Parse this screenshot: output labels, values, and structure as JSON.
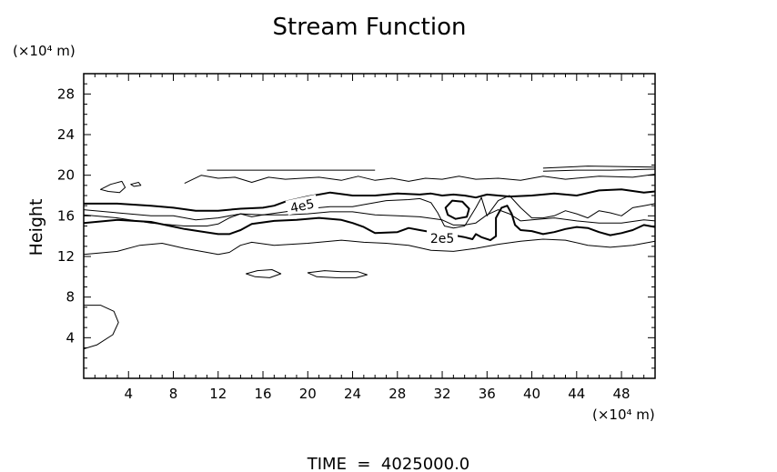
{
  "chart_data": {
    "type": "contour",
    "title": "Stream Function",
    "xlabel": "",
    "ylabel": "Height",
    "x_unit_label": "(×10⁴ m)",
    "y_unit_label": "(×10⁴ m)",
    "xlim": [
      0,
      51
    ],
    "ylim": [
      0,
      30
    ],
    "x_ticks": [
      4,
      8,
      12,
      16,
      20,
      24,
      28,
      32,
      36,
      40,
      44,
      48
    ],
    "y_ticks": [
      4,
      8,
      12,
      16,
      20,
      24,
      28
    ],
    "grid": false,
    "footer": "TIME  =  4025000.0",
    "contour_labels": [
      {
        "text": "4e5",
        "x": 19.5,
        "y": 17.0,
        "angle": -12
      },
      {
        "text": "2e5",
        "x": 32.0,
        "y": 13.8,
        "angle": 0
      }
    ],
    "contours": [
      {
        "name": "upper-thin-1",
        "weight": "thin",
        "closed": false,
        "points": [
          [
            11,
            20.5
          ],
          [
            16,
            20.5
          ],
          [
            22,
            20.5
          ],
          [
            26,
            20.5
          ]
        ]
      },
      {
        "name": "upper-thin-2",
        "weight": "thin",
        "closed": false,
        "points": [
          [
            41,
            20.4
          ],
          [
            44,
            20.5
          ],
          [
            47,
            20.5
          ],
          [
            51,
            20.6
          ]
        ]
      },
      {
        "name": "upper-thin-3",
        "weight": "thin",
        "closed": false,
        "points": [
          [
            41,
            20.7
          ],
          [
            45,
            20.9
          ],
          [
            51,
            20.8
          ]
        ]
      },
      {
        "name": "contour-6e5",
        "weight": "thin",
        "closed": false,
        "points": [
          [
            9,
            19.2
          ],
          [
            10.5,
            20
          ],
          [
            12,
            19.7
          ],
          [
            13.5,
            19.8
          ],
          [
            15,
            19.3
          ],
          [
            16.5,
            19.8
          ],
          [
            18,
            19.6
          ],
          [
            21,
            19.8
          ],
          [
            23,
            19.5
          ],
          [
            24.5,
            19.9
          ],
          [
            26,
            19.5
          ],
          [
            27.5,
            19.7
          ],
          [
            29,
            19.4
          ],
          [
            30.5,
            19.7
          ],
          [
            32,
            19.6
          ],
          [
            33.5,
            19.9
          ],
          [
            35,
            19.6
          ],
          [
            37,
            19.7
          ],
          [
            39,
            19.5
          ],
          [
            41,
            19.9
          ],
          [
            43,
            19.6
          ],
          [
            46,
            19.9
          ],
          [
            49,
            19.8
          ],
          [
            51,
            20.1
          ]
        ]
      },
      {
        "name": "contour-5e5",
        "weight": "thin",
        "closed": false,
        "points": [
          [
            0,
            16.6
          ],
          [
            3,
            16.3
          ],
          [
            6,
            16.0
          ],
          [
            8,
            16.0
          ],
          [
            10,
            15.6
          ],
          [
            12,
            15.8
          ],
          [
            14,
            16.2
          ],
          [
            16,
            16.1
          ],
          [
            18,
            16.4
          ],
          [
            20,
            16.7
          ],
          [
            22,
            16.9
          ],
          [
            24,
            16.9
          ],
          [
            25,
            17.1
          ],
          [
            27,
            17.5
          ],
          [
            29,
            17.6
          ],
          [
            30,
            17.7
          ],
          [
            31,
            17.3
          ],
          [
            31.6,
            16.3
          ],
          [
            32.2,
            15.0
          ],
          [
            33,
            14.8
          ],
          [
            34,
            15.0
          ],
          [
            35,
            16.8
          ],
          [
            35.5,
            17.8
          ],
          [
            36,
            16.0
          ],
          [
            37,
            17.5
          ],
          [
            38,
            18.0
          ],
          [
            39,
            16.8
          ],
          [
            40,
            15.8
          ],
          [
            41,
            15.8
          ],
          [
            42,
            16.0
          ],
          [
            43,
            16.5
          ],
          [
            44,
            16.2
          ],
          [
            45,
            15.8
          ],
          [
            46,
            16.5
          ],
          [
            47,
            16.3
          ],
          [
            48,
            16.0
          ],
          [
            49,
            16.8
          ],
          [
            50,
            17.0
          ],
          [
            51,
            17.2
          ]
        ]
      },
      {
        "name": "contour-4e5",
        "weight": "thick",
        "closed": false,
        "points": [
          [
            0,
            17.2
          ],
          [
            3,
            17.2
          ],
          [
            6,
            17.0
          ],
          [
            8,
            16.8
          ],
          [
            10,
            16.5
          ],
          [
            12,
            16.5
          ],
          [
            14,
            16.7
          ],
          [
            16,
            16.8
          ],
          [
            17,
            17.0
          ],
          [
            18,
            17.4
          ],
          [
            20,
            17.9
          ],
          [
            22,
            18.3
          ],
          [
            24,
            18.0
          ],
          [
            26,
            18.0
          ],
          [
            28,
            18.2
          ],
          [
            30,
            18.1
          ],
          [
            31,
            18.2
          ],
          [
            32,
            18.0
          ],
          [
            33,
            18.1
          ],
          [
            34,
            18.0
          ],
          [
            35,
            17.8
          ],
          [
            36,
            18.1
          ],
          [
            38,
            17.9
          ],
          [
            40,
            18.0
          ],
          [
            42,
            18.2
          ],
          [
            44,
            18.0
          ],
          [
            46,
            18.5
          ],
          [
            48,
            18.6
          ],
          [
            50,
            18.3
          ],
          [
            51,
            18.4
          ]
        ]
      },
      {
        "name": "contour-3e5",
        "weight": "thin",
        "closed": false,
        "points": [
          [
            0,
            16.1
          ],
          [
            3,
            15.8
          ],
          [
            6,
            15.3
          ],
          [
            9,
            15.0
          ],
          [
            11,
            15.0
          ],
          [
            12,
            15.2
          ],
          [
            13,
            15.8
          ],
          [
            14,
            16.2
          ],
          [
            15,
            15.9
          ],
          [
            16,
            16.1
          ],
          [
            18,
            16.1
          ],
          [
            20,
            16.2
          ],
          [
            22,
            16.4
          ],
          [
            24,
            16.4
          ],
          [
            26,
            16.1
          ],
          [
            28,
            16.0
          ],
          [
            30,
            15.9
          ],
          [
            32,
            15.6
          ],
          [
            33,
            15.1
          ],
          [
            34,
            15.1
          ],
          [
            35,
            15.3
          ],
          [
            36,
            16.1
          ],
          [
            37,
            16.6
          ],
          [
            38,
            16.2
          ],
          [
            39,
            15.5
          ],
          [
            40,
            15.6
          ],
          [
            42,
            15.8
          ],
          [
            44,
            15.5
          ],
          [
            46,
            15.3
          ],
          [
            48,
            15.3
          ],
          [
            50,
            15.6
          ],
          [
            51,
            15.5
          ]
        ]
      },
      {
        "name": "contour-2e5",
        "weight": "thick",
        "closed": false,
        "points": [
          [
            0,
            15.3
          ],
          [
            3,
            15.6
          ],
          [
            6,
            15.4
          ],
          [
            9,
            14.7
          ],
          [
            12,
            14.2
          ],
          [
            13,
            14.2
          ],
          [
            14,
            14.6
          ],
          [
            15,
            15.2
          ],
          [
            17,
            15.5
          ],
          [
            19,
            15.6
          ],
          [
            21,
            15.8
          ],
          [
            23,
            15.6
          ],
          [
            24,
            15.3
          ],
          [
            25,
            14.9
          ],
          [
            26,
            14.3
          ],
          [
            28,
            14.4
          ],
          [
            29,
            14.8
          ],
          [
            30,
            14.6
          ],
          [
            31,
            14.4
          ],
          [
            32,
            14.2
          ],
          [
            33,
            14.1
          ],
          [
            34,
            13.9
          ],
          [
            34.7,
            13.7
          ],
          [
            35,
            14.2
          ],
          [
            35.5,
            13.9
          ],
          [
            36.3,
            13.6
          ],
          [
            36.8,
            14.0
          ],
          [
            36.8,
            15.8
          ],
          [
            37.3,
            16.8
          ],
          [
            37.8,
            17.0
          ],
          [
            38.2,
            16.2
          ],
          [
            38.5,
            15.1
          ],
          [
            39,
            14.6
          ],
          [
            40,
            14.5
          ],
          [
            41,
            14.2
          ],
          [
            42,
            14.4
          ],
          [
            43,
            14.7
          ],
          [
            44,
            14.9
          ],
          [
            45,
            14.8
          ],
          [
            46,
            14.4
          ],
          [
            47,
            14.1
          ],
          [
            48,
            14.3
          ],
          [
            49,
            14.6
          ],
          [
            50,
            15.1
          ],
          [
            51,
            14.9
          ]
        ]
      },
      {
        "name": "contour-1e5",
        "weight": "thin",
        "closed": false,
        "points": [
          [
            0,
            12.2
          ],
          [
            3,
            12.5
          ],
          [
            5,
            13.1
          ],
          [
            7,
            13.3
          ],
          [
            9,
            12.8
          ],
          [
            11,
            12.4
          ],
          [
            12,
            12.2
          ],
          [
            13,
            12.4
          ],
          [
            14,
            13.1
          ],
          [
            15,
            13.4
          ],
          [
            17,
            13.1
          ],
          [
            20,
            13.3
          ],
          [
            23,
            13.6
          ],
          [
            25,
            13.4
          ],
          [
            27,
            13.3
          ],
          [
            29,
            13.1
          ],
          [
            31,
            12.6
          ],
          [
            33,
            12.5
          ],
          [
            35,
            12.8
          ],
          [
            37,
            13.2
          ],
          [
            39,
            13.5
          ],
          [
            41,
            13.7
          ],
          [
            43,
            13.6
          ],
          [
            45,
            13.1
          ],
          [
            47,
            12.9
          ],
          [
            49,
            13.1
          ],
          [
            51,
            13.5
          ]
        ]
      },
      {
        "name": "closed-cell-upper-left",
        "weight": "thin",
        "closed": true,
        "points": [
          [
            1.5,
            18.6
          ],
          [
            2.4,
            19.1
          ],
          [
            3.4,
            19.4
          ],
          [
            3.7,
            18.8
          ],
          [
            3.2,
            18.3
          ],
          [
            2.2,
            18.4
          ]
        ]
      },
      {
        "name": "closed-cell-upper-left-small",
        "weight": "thin",
        "closed": true,
        "points": [
          [
            4.2,
            19.1
          ],
          [
            4.9,
            19.3
          ],
          [
            5.1,
            19.0
          ],
          [
            4.5,
            18.9
          ]
        ]
      },
      {
        "name": "closed-cell-mid-1",
        "weight": "thin",
        "closed": true,
        "points": [
          [
            14.5,
            10.3
          ],
          [
            15.5,
            10.6
          ],
          [
            16.8,
            10.7
          ],
          [
            17.6,
            10.3
          ],
          [
            16.6,
            9.9
          ],
          [
            15.3,
            10.0
          ]
        ]
      },
      {
        "name": "closed-cell-mid-2",
        "weight": "thin",
        "closed": true,
        "points": [
          [
            20,
            10.4
          ],
          [
            21.5,
            10.6
          ],
          [
            23,
            10.5
          ],
          [
            24.5,
            10.5
          ],
          [
            25.3,
            10.2
          ],
          [
            24.3,
            9.9
          ],
          [
            22.5,
            9.9
          ],
          [
            20.8,
            10.0
          ]
        ]
      },
      {
        "name": "closed-cell-thick",
        "weight": "thick",
        "closed": true,
        "points": [
          [
            32.3,
            16.8
          ],
          [
            32.9,
            17.5
          ],
          [
            33.8,
            17.4
          ],
          [
            34.4,
            16.7
          ],
          [
            34.2,
            15.9
          ],
          [
            33.2,
            15.7
          ],
          [
            32.5,
            16.1
          ]
        ]
      },
      {
        "name": "closed-arc-lower-left",
        "weight": "thin",
        "closed": false,
        "points": [
          [
            0,
            7.2
          ],
          [
            1.5,
            7.2
          ],
          [
            2.7,
            6.6
          ],
          [
            3.1,
            5.5
          ],
          [
            2.6,
            4.3
          ],
          [
            1.2,
            3.3
          ],
          [
            0,
            2.9
          ]
        ]
      }
    ]
  }
}
